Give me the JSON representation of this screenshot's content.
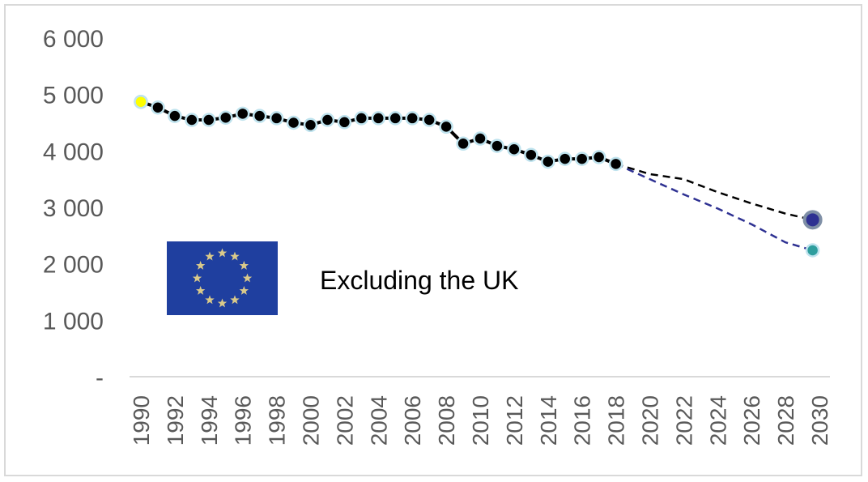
{
  "chart_data": {
    "type": "line",
    "title": "",
    "xlabel": "",
    "ylabel": "",
    "annotation": "Excluding the UK",
    "emblem": "eu-flag-icon",
    "ylim": [
      0,
      6000
    ],
    "xlim": [
      1990,
      2030
    ],
    "y_ticks": [
      {
        "value": 0,
        "label": "-"
      },
      {
        "value": 1000,
        "label": "1 000"
      },
      {
        "value": 2000,
        "label": "2 000"
      },
      {
        "value": 3000,
        "label": "3 000"
      },
      {
        "value": 4000,
        "label": "4 000"
      },
      {
        "value": 5000,
        "label": "5 000"
      },
      {
        "value": 6000,
        "label": "6 000"
      }
    ],
    "x_ticks": [
      "1990",
      "1992",
      "1994",
      "1996",
      "1998",
      "2000",
      "2002",
      "2004",
      "2006",
      "2008",
      "2010",
      "2012",
      "2014",
      "2016",
      "2018",
      "2020",
      "2022",
      "2024",
      "2026",
      "2028",
      "2030"
    ],
    "grid": false,
    "series": [
      {
        "color": "#000000",
        "style": "solid",
        "x": [
          1990,
          1991,
          1992,
          1993,
          1994,
          1995,
          1996,
          1997,
          1998,
          1999,
          2000,
          2001,
          2002,
          2003,
          2004,
          2005,
          2006,
          2007,
          2008,
          2009,
          2010,
          2011,
          2012,
          2013,
          2014,
          2015,
          2016,
          2017,
          2018
        ],
        "y": [
          4870,
          4770,
          4620,
          4550,
          4550,
          4590,
          4660,
          4620,
          4580,
          4500,
          4460,
          4550,
          4510,
          4580,
          4580,
          4580,
          4580,
          4550,
          4430,
          4130,
          4220,
          4090,
          4030,
          3930,
          3810,
          3860,
          3860,
          3890,
          3770
        ]
      },
      {
        "color": "#000000",
        "style": "dashed",
        "x": [
          2018,
          2020,
          2022,
          2024,
          2026,
          2028,
          2029.6
        ],
        "y": [
          3770,
          3590,
          3500,
          3270,
          3070,
          2890,
          2780
        ]
      },
      {
        "color": "#2e3192",
        "style": "dashed",
        "x": [
          2018,
          2020,
          2022,
          2024,
          2026,
          2028,
          2029.6
        ],
        "y": [
          3770,
          3500,
          3230,
          2980,
          2700,
          2380,
          2240
        ]
      }
    ],
    "highlight_points": [
      {
        "x": 1990,
        "y": 4870,
        "color": "#ffff00"
      },
      {
        "x": 2029.6,
        "y": 2780,
        "color": "#2e3192"
      },
      {
        "x": 2029.6,
        "y": 2240,
        "color": "#2e9e9e"
      }
    ]
  }
}
